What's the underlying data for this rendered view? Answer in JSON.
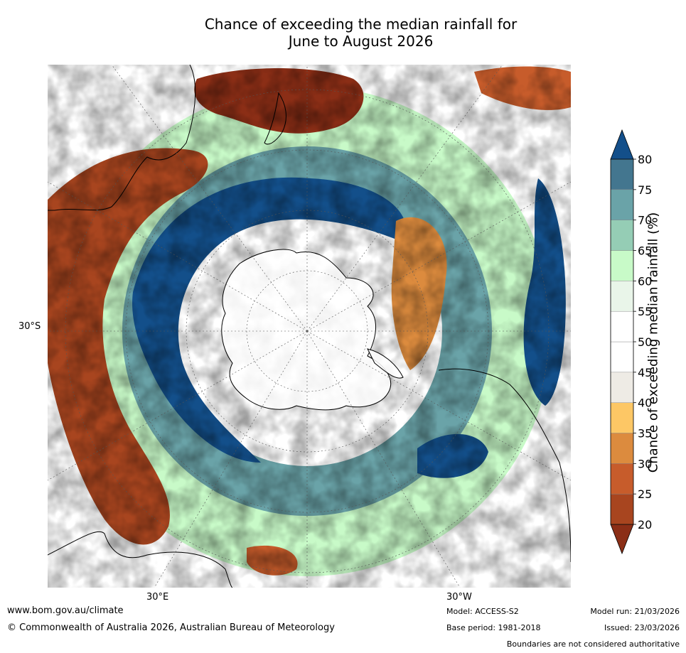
{
  "title_line1": "Chance of exceeding the median rainfall for",
  "title_line2": "June to August 2026",
  "map": {
    "projection": "south-polar-stereographic",
    "lat_label": "30°S",
    "lon_labels": [
      "30°E",
      "30°W"
    ],
    "regions_in_view": [
      "Antarctica",
      "Australia",
      "New Zealand",
      "South America",
      "Southern Africa"
    ]
  },
  "colorbar": {
    "label": "Chance of exceeding median rainfall (%)",
    "ticks": [
      "20",
      "25",
      "30",
      "35",
      "40",
      "45",
      "50",
      "55",
      "60",
      "65",
      "70",
      "75",
      "80"
    ],
    "under_color": "#8b2e16",
    "over_color": "#134f8a",
    "colors": [
      "#a8451f",
      "#c75c2b",
      "#dc8b3e",
      "#fdc765",
      "#eeebe5",
      "#ffffff",
      "#ffffff",
      "#e9f5e9",
      "#c8fac8",
      "#95cdb5",
      "#6aa3a8",
      "#43768f"
    ]
  },
  "footer": {
    "url": "www.bom.gov.au/climate",
    "copyright": "© Commonwealth of Australia 2026, Australian Bureau of Meteorology",
    "model": "Model: ACCESS-S2",
    "base_period": "Base period: 1981-2018",
    "model_run": "Model run: 21/03/2026",
    "issued": "Issued: 23/03/2026",
    "disclaimer": "Boundaries are not considered authoritative"
  }
}
